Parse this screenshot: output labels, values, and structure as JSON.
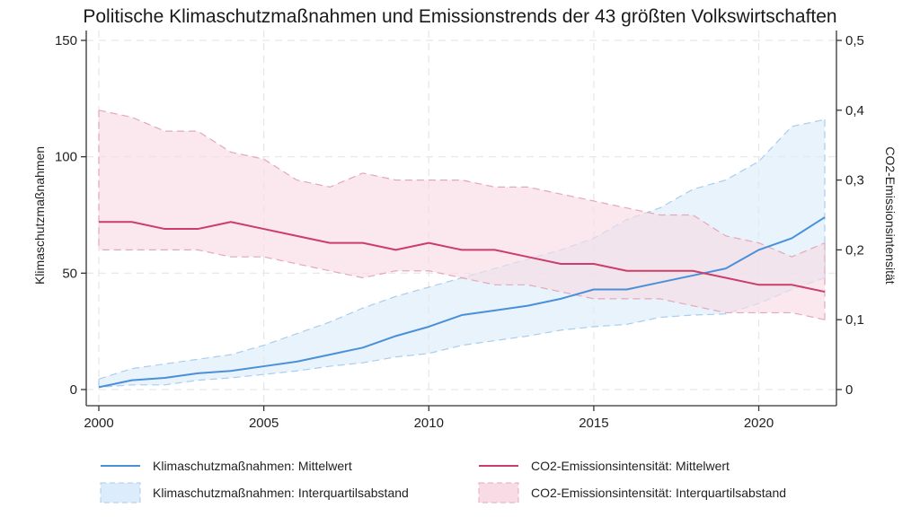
{
  "chart_data": {
    "type": "line",
    "title": "Politische Klimaschutzmaßnahmen und Emissionstrends der 43 größten Volkswirtschaften",
    "xlabel": "",
    "ylabel": "Klimaschutzmaßnahmen",
    "y2label": "CO2-Emissionsintensität",
    "xlim": [
      2000,
      2022
    ],
    "ylim": [
      0,
      150
    ],
    "y2lim": [
      0,
      0.5
    ],
    "grid": true,
    "legend_position": "bottom",
    "x_ticks": [
      2000,
      2005,
      2010,
      2015,
      2020
    ],
    "x_tick_labels": [
      "2000",
      "2005",
      "2010",
      "2015",
      "2020"
    ],
    "y_ticks": [
      0,
      50,
      100,
      150
    ],
    "y_tick_labels": [
      "0",
      "50",
      "100",
      "150"
    ],
    "y2_ticks": [
      0,
      0.1,
      0.2,
      0.3,
      0.4,
      0.5
    ],
    "y2_tick_labels": [
      "0",
      "0,1",
      "0,2",
      "0,3",
      "0,4",
      "0,5"
    ],
    "x": [
      2000,
      2001,
      2002,
      2003,
      2004,
      2005,
      2006,
      2007,
      2008,
      2009,
      2010,
      2011,
      2012,
      2013,
      2014,
      2015,
      2016,
      2017,
      2018,
      2019,
      2020,
      2021,
      2022
    ],
    "series": [
      {
        "name": "Klimaschutzmaßnahmen: Mittelwert",
        "kind": "line",
        "axis": "left",
        "color": "#4a90d9",
        "values": [
          1,
          4,
          5,
          7,
          8,
          10,
          12,
          15,
          18,
          23,
          27,
          32,
          34,
          36,
          39,
          43,
          43,
          46,
          49,
          52,
          60,
          65,
          74
        ]
      },
      {
        "name": "Klimaschutzmaßnahmen: Interquartilsabstand",
        "kind": "band",
        "axis": "left",
        "color": "#a9cdee",
        "fill": "#dcecfa",
        "lower": [
          1,
          2,
          2,
          4,
          5,
          6.5,
          8,
          10,
          11.5,
          14,
          15.5,
          19,
          21,
          23,
          25.5,
          27,
          28,
          31,
          32,
          32.5,
          37,
          43,
          48
        ],
        "upper": [
          4.5,
          9,
          11,
          13,
          15,
          19,
          24,
          29,
          35,
          40,
          44,
          48,
          52,
          56,
          60,
          65,
          73,
          78,
          86,
          90,
          98,
          113,
          116
        ]
      },
      {
        "name": "CO2-Emissionsintensität: Mittelwert",
        "kind": "line",
        "axis": "right",
        "color": "#cc3d6a",
        "values": [
          0.24,
          0.24,
          0.23,
          0.23,
          0.24,
          0.23,
          0.22,
          0.21,
          0.21,
          0.2,
          0.21,
          0.2,
          0.2,
          0.19,
          0.18,
          0.18,
          0.17,
          0.17,
          0.17,
          0.16,
          0.15,
          0.15,
          0.14
        ]
      },
      {
        "name": "CO2-Emissionsintensität: Interquartilsabstand",
        "kind": "band",
        "axis": "right",
        "color": "#e3a8bb",
        "fill": "#f8dbe5",
        "lower": [
          0.2,
          0.2,
          0.2,
          0.2,
          0.19,
          0.19,
          0.18,
          0.17,
          0.16,
          0.17,
          0.17,
          0.16,
          0.15,
          0.15,
          0.14,
          0.13,
          0.13,
          0.13,
          0.12,
          0.11,
          0.11,
          0.11,
          0.1
        ],
        "upper": [
          0.4,
          0.39,
          0.37,
          0.37,
          0.34,
          0.33,
          0.3,
          0.29,
          0.31,
          0.3,
          0.3,
          0.3,
          0.29,
          0.29,
          0.28,
          0.27,
          0.26,
          0.25,
          0.25,
          0.22,
          0.21,
          0.19,
          0.21
        ]
      }
    ],
    "legend": [
      "Klimaschutzmaßnahmen: Mittelwert",
      "CO2-Emissionsintensität: Mittelwert",
      "Klimaschutzmaßnahmen: Interquartilsabstand",
      "CO2-Emissionsintensität: Interquartilsabstand"
    ]
  }
}
